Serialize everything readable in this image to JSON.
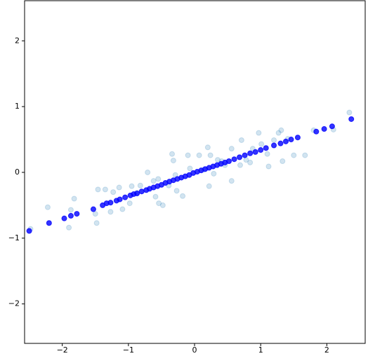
{
  "chart_data": {
    "type": "scatter",
    "xlim": [
      -2.57,
      2.58
    ],
    "ylim": [
      -2.6,
      2.61
    ],
    "xticks": [
      {
        "value": -2,
        "label": "−2"
      },
      {
        "value": -1,
        "label": "−1"
      },
      0,
      1,
      2
    ],
    "yticks": [
      {
        "value": -2,
        "label": "−2"
      },
      {
        "value": -1,
        "label": "−1"
      },
      0,
      1,
      2
    ],
    "series": [
      {
        "color": "#1f77b4",
        "alpha": 0.2,
        "x": [
          -2.48,
          -2.22,
          -1.82,
          -1.87,
          -1.9,
          -1.46,
          -1.5,
          -1.48,
          -1.23,
          -1.09,
          -1.27,
          -0.95,
          -0.71,
          -0.62,
          -0.59,
          -0.54,
          -0.48,
          -0.34,
          -0.32,
          -0.29,
          -0.27,
          -0.18,
          -0.1,
          0.07,
          0.2,
          0.24,
          0.22,
          0.29,
          0.41,
          0.46,
          0.56,
          0.71,
          0.69,
          0.84,
          0.88,
          0.97,
          1.1,
          1.12,
          1.27,
          1.31,
          1.33,
          1.5,
          1.67,
          1.8,
          2.1,
          2.34,
          -1.35,
          -0.82,
          -0.39,
          -0.07,
          0.14,
          0.35,
          0.56,
          0.78,
          1.01,
          1.2,
          1.41,
          -0.55,
          -0.87,
          -0.98,
          -1.14
        ],
        "values": [
          -0.86,
          -0.53,
          -0.4,
          -0.57,
          -0.84,
          -0.26,
          -0.63,
          -0.77,
          -0.3,
          -0.56,
          -0.6,
          -0.21,
          0,
          -0.13,
          -0.37,
          -0.47,
          -0.5,
          0.28,
          0.18,
          -0.04,
          -0.28,
          -0.36,
          0.26,
          0.26,
          0.38,
          0.26,
          -0.21,
          -0.02,
          0.17,
          0.11,
          -0.13,
          0.49,
          0.11,
          0.15,
          0.36,
          0.6,
          0.28,
          0.09,
          0.6,
          0.64,
          0.17,
          0.26,
          0.26,
          0.64,
          0.65,
          0.91,
          -0.26,
          -0.2,
          -0.2,
          0.06,
          0.04,
          0.19,
          0.36,
          0.19,
          0.43,
          0.49,
          0.51,
          -0.1,
          -0.31,
          -0.47,
          -0.23
        ]
      },
      {
        "color": "#0000ff",
        "alpha": 0.8,
        "x": [
          -2.5,
          -2.2,
          -1.97,
          -1.87,
          -1.78,
          -1.53,
          -1.39,
          -1.33,
          -1.27,
          -1.18,
          -1.13,
          -1.05,
          -0.97,
          -0.92,
          -0.87,
          -0.8,
          -0.73,
          -0.68,
          -0.62,
          -0.56,
          -0.5,
          -0.44,
          -0.38,
          -0.32,
          -0.26,
          -0.2,
          -0.14,
          -0.08,
          -0.02,
          0.04,
          0.1,
          0.16,
          0.22,
          0.28,
          0.34,
          0.4,
          0.46,
          0.52,
          0.6,
          0.68,
          0.76,
          0.84,
          0.92,
          1.0,
          1.08,
          1.2,
          1.3,
          1.38,
          1.46,
          1.56,
          1.84,
          1.96,
          2.08,
          2.37
        ],
        "values": [
          -0.89,
          -0.77,
          -0.7,
          -0.66,
          -0.63,
          -0.56,
          -0.5,
          -0.47,
          -0.46,
          -0.43,
          -0.41,
          -0.38,
          -0.35,
          -0.33,
          -0.32,
          -0.29,
          -0.27,
          -0.25,
          -0.23,
          -0.21,
          -0.19,
          -0.16,
          -0.14,
          -0.12,
          -0.1,
          -0.08,
          -0.06,
          -0.04,
          -0.01,
          0.01,
          0.03,
          0.05,
          0.07,
          0.09,
          0.11,
          0.13,
          0.15,
          0.17,
          0.2,
          0.23,
          0.26,
          0.29,
          0.31,
          0.34,
          0.37,
          0.41,
          0.44,
          0.47,
          0.5,
          0.53,
          0.62,
          0.66,
          0.7,
          0.81
        ]
      }
    ]
  }
}
